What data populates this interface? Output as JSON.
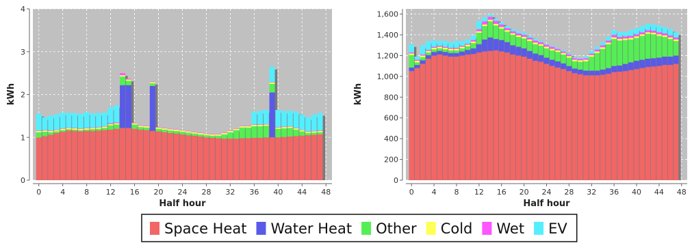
{
  "chart_data": [
    {
      "type": "bar",
      "stacked": true,
      "xlabel": "Half hour",
      "ylabel": "kWh",
      "xlim": [
        -1,
        49
      ],
      "ylim": [
        0,
        4
      ],
      "x_ticks": [
        0,
        4,
        8,
        12,
        16,
        20,
        24,
        28,
        32,
        36,
        40,
        44,
        48
      ],
      "y_ticks": [
        0,
        1,
        2,
        3,
        4
      ],
      "y_tick_labels": [
        "0",
        "1",
        "2",
        "3",
        "4"
      ],
      "grid": true,
      "x": [
        0,
        1,
        2,
        3,
        4,
        5,
        6,
        7,
        8,
        9,
        10,
        11,
        12,
        13,
        14,
        15,
        16,
        17,
        18,
        19,
        20,
        21,
        22,
        23,
        24,
        25,
        26,
        27,
        28,
        29,
        30,
        31,
        32,
        33,
        34,
        35,
        36,
        37,
        38,
        39,
        40,
        41,
        42,
        43,
        44,
        45,
        46,
        47
      ],
      "series": [
        {
          "name": "Space Heat",
          "values": [
            1.0,
            1.03,
            1.06,
            1.1,
            1.13,
            1.16,
            1.15,
            1.14,
            1.15,
            1.15,
            1.16,
            1.17,
            1.18,
            1.2,
            1.22,
            1.22,
            1.2,
            1.18,
            1.17,
            1.15,
            1.14,
            1.12,
            1.1,
            1.09,
            1.07,
            1.05,
            1.04,
            1.02,
            1.0,
            0.99,
            0.98,
            0.97,
            0.97,
            0.97,
            0.98,
            0.98,
            0.99,
            0.99,
            1.0,
            1.0,
            1.0,
            1.01,
            1.02,
            1.03,
            1.04,
            1.05,
            1.06,
            1.07
          ]
        },
        {
          "name": "Water Heat",
          "values": [
            0,
            0,
            0,
            0,
            0,
            0,
            0,
            0,
            0,
            0,
            0,
            0,
            0,
            0,
            1.0,
            1.0,
            0,
            0,
            0,
            1.05,
            0,
            0,
            0,
            0,
            0,
            0,
            0,
            0,
            0,
            0,
            0,
            0,
            0,
            0,
            0,
            0,
            0,
            0,
            0,
            1.05,
            0,
            0,
            0,
            0,
            0,
            0,
            0,
            0
          ]
        },
        {
          "name": "Other",
          "values": [
            0.12,
            0.1,
            0.06,
            0.04,
            0.04,
            0.03,
            0.03,
            0.03,
            0.03,
            0.04,
            0.04,
            0.05,
            0.1,
            0.1,
            0.2,
            0.1,
            0.1,
            0.06,
            0.06,
            0.06,
            0.06,
            0.06,
            0.06,
            0.06,
            0.06,
            0.06,
            0.05,
            0.05,
            0.05,
            0.05,
            0.06,
            0.1,
            0.15,
            0.2,
            0.25,
            0.25,
            0.27,
            0.27,
            0.27,
            0.2,
            0.2,
            0.2,
            0.2,
            0.15,
            0.1,
            0.05,
            0.05,
            0.05
          ]
        },
        {
          "name": "Cold",
          "values": [
            0.03,
            0.03,
            0.03,
            0.03,
            0.03,
            0.03,
            0.03,
            0.03,
            0.03,
            0.03,
            0.03,
            0.03,
            0.03,
            0.03,
            0.03,
            0.03,
            0.03,
            0.03,
            0.03,
            0.03,
            0.03,
            0.03,
            0.03,
            0.03,
            0.03,
            0.03,
            0.03,
            0.03,
            0.03,
            0.03,
            0.03,
            0.03,
            0.03,
            0.03,
            0.03,
            0.03,
            0.03,
            0.03,
            0.03,
            0.03,
            0.03,
            0.03,
            0.03,
            0.03,
            0.03,
            0.03,
            0.03,
            0.03
          ]
        },
        {
          "name": "Wet",
          "values": [
            0.01,
            0.01,
            0.01,
            0.01,
            0.01,
            0.01,
            0.01,
            0.01,
            0.01,
            0.01,
            0.01,
            0.01,
            0.02,
            0.02,
            0.05,
            0.02,
            0.01,
            0.01,
            0.01,
            0.01,
            0.01,
            0.01,
            0.01,
            0.01,
            0.01,
            0.01,
            0.01,
            0.01,
            0.01,
            0.01,
            0.01,
            0.01,
            0.01,
            0.01,
            0.01,
            0.01,
            0.01,
            0.01,
            0.01,
            0.01,
            0.01,
            0.01,
            0.01,
            0.01,
            0.01,
            0.01,
            0.01,
            0.01
          ]
        },
        {
          "name": "EV",
          "values": [
            0.39,
            0.3,
            0.35,
            0.36,
            0.37,
            0.34,
            0.35,
            0.34,
            0.37,
            0.33,
            0.33,
            0.32,
            0.37,
            0.4,
            0.0,
            0.0,
            0.0,
            0.0,
            0.0,
            0.0,
            0.0,
            0.0,
            0.0,
            0.0,
            0.0,
            0.0,
            0.0,
            0.0,
            0.0,
            0.0,
            0.0,
            0.0,
            0.0,
            0.0,
            0.0,
            0.0,
            0.3,
            0.32,
            0.33,
            0.36,
            0.4,
            0.37,
            0.36,
            0.38,
            0.35,
            0.33,
            0.38,
            0.41
          ]
        }
      ]
    },
    {
      "type": "bar",
      "stacked": true,
      "xlabel": "Half hour",
      "ylabel": "kWh",
      "xlim": [
        -1,
        49
      ],
      "ylim": [
        0,
        1650
      ],
      "x_ticks": [
        0,
        4,
        8,
        12,
        16,
        20,
        24,
        28,
        32,
        36,
        40,
        44,
        48
      ],
      "y_ticks": [
        0,
        200,
        400,
        600,
        800,
        1000,
        1200,
        1400,
        1600
      ],
      "y_tick_labels": [
        "0",
        "200",
        "400",
        "600",
        "800",
        "1,000",
        "1,200",
        "1,400",
        "1,600"
      ],
      "grid": true,
      "x": [
        0,
        1,
        2,
        3,
        4,
        5,
        6,
        7,
        8,
        9,
        10,
        11,
        12,
        13,
        14,
        15,
        16,
        17,
        18,
        19,
        20,
        21,
        22,
        23,
        24,
        25,
        26,
        27,
        28,
        29,
        30,
        31,
        32,
        33,
        34,
        35,
        36,
        37,
        38,
        39,
        40,
        41,
        42,
        43,
        44,
        45,
        46,
        47
      ],
      "series": [
        {
          "name": "Space Heat",
          "values": [
            1050,
            1080,
            1120,
            1170,
            1200,
            1210,
            1200,
            1190,
            1190,
            1200,
            1210,
            1215,
            1230,
            1240,
            1245,
            1250,
            1240,
            1230,
            1210,
            1200,
            1190,
            1170,
            1150,
            1140,
            1120,
            1100,
            1085,
            1070,
            1050,
            1030,
            1020,
            1010,
            1010,
            1010,
            1015,
            1025,
            1040,
            1045,
            1050,
            1060,
            1070,
            1080,
            1090,
            1095,
            1100,
            1110,
            1110,
            1120
          ]
        },
        {
          "name": "Water Heat",
          "values": [
            35,
            30,
            35,
            35,
            35,
            35,
            35,
            35,
            35,
            40,
            45,
            55,
            80,
            115,
            130,
            110,
            110,
            100,
            90,
            85,
            80,
            75,
            70,
            65,
            60,
            60,
            60,
            55,
            50,
            45,
            45,
            45,
            45,
            45,
            50,
            55,
            60,
            60,
            70,
            75,
            80,
            80,
            80,
            80,
            80,
            80,
            80,
            80
          ]
        },
        {
          "name": "Other",
          "values": [
            120,
            25,
            30,
            25,
            25,
            25,
            25,
            25,
            25,
            30,
            35,
            50,
            110,
            130,
            155,
            130,
            110,
            100,
            100,
            95,
            95,
            95,
            90,
            90,
            90,
            90,
            90,
            85,
            80,
            70,
            75,
            90,
            135,
            170,
            200,
            230,
            260,
            240,
            230,
            220,
            220,
            230,
            240,
            230,
            210,
            190,
            170,
            140
          ]
        },
        {
          "name": "Cold",
          "values": [
            15,
            15,
            15,
            15,
            15,
            15,
            15,
            15,
            15,
            15,
            15,
            15,
            15,
            15,
            15,
            15,
            15,
            15,
            15,
            15,
            15,
            15,
            15,
            15,
            15,
            15,
            15,
            15,
            15,
            15,
            15,
            15,
            15,
            15,
            15,
            15,
            15,
            15,
            15,
            15,
            15,
            15,
            15,
            15,
            15,
            15,
            15,
            15
          ]
        },
        {
          "name": "Wet",
          "values": [
            10,
            10,
            10,
            10,
            10,
            10,
            10,
            10,
            10,
            10,
            10,
            15,
            20,
            30,
            30,
            30,
            25,
            20,
            20,
            20,
            20,
            20,
            20,
            20,
            20,
            20,
            15,
            15,
            15,
            15,
            15,
            15,
            15,
            20,
            20,
            20,
            25,
            20,
            20,
            20,
            20,
            20,
            20,
            20,
            20,
            20,
            20,
            20
          ]
        },
        {
          "name": "EV",
          "values": [
            80,
            30,
            90,
            85,
            60,
            45,
            55,
            55,
            65,
            45,
            40,
            45,
            80,
            40,
            20,
            20,
            20,
            20,
            20,
            20,
            20,
            15,
            15,
            10,
            10,
            10,
            10,
            10,
            10,
            10,
            10,
            15,
            25,
            25,
            30,
            35,
            45,
            45,
            40,
            55,
            60,
            60,
            60,
            60,
            65,
            60,
            60,
            50
          ]
        }
      ]
    }
  ],
  "legend": {
    "items": [
      {
        "name": "Space Heat",
        "color": "#f26666"
      },
      {
        "name": "Water Heat",
        "color": "#5a5ae8"
      },
      {
        "name": "Other",
        "color": "#55ee55"
      },
      {
        "name": "Cold",
        "color": "#ffff55"
      },
      {
        "name": "Wet",
        "color": "#ff55ff"
      },
      {
        "name": "EV",
        "color": "#55eeff"
      }
    ]
  },
  "colors": {
    "plot_background": "#c0c0c0",
    "grid": "#ffffff",
    "bar_shadow": "#7a7a7a"
  }
}
